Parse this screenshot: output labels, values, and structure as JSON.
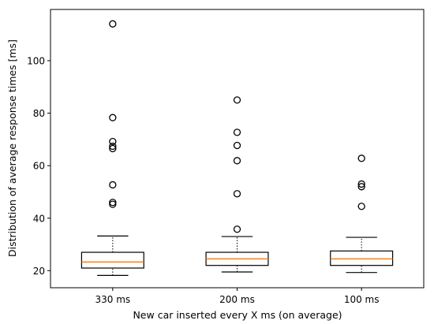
{
  "chart_data": {
    "type": "box",
    "title": "",
    "xlabel": "New car inserted every X ms (on average)",
    "ylabel": "Distribution of average response times [ms]",
    "ylim": [
      13.5,
      119.5
    ],
    "yticks": [
      20,
      40,
      60,
      80,
      100
    ],
    "grid": false,
    "categories": [
      "330 ms",
      "200 ms",
      "100 ms"
    ],
    "boxes": [
      {
        "category": "330 ms",
        "whisker_low": 18.2,
        "q1": 21.0,
        "median": 23.3,
        "q3": 27.0,
        "whisker_high": 33.2,
        "outliers": [
          45.3,
          46.0,
          52.7,
          66.5,
          67.4,
          69.2,
          78.3,
          114.0
        ]
      },
      {
        "category": "200 ms",
        "whisker_low": 19.5,
        "q1": 22.0,
        "median": 24.5,
        "q3": 27.0,
        "whisker_high": 33.0,
        "outliers": [
          35.8,
          49.3,
          61.9,
          67.7,
          72.7,
          85.0
        ]
      },
      {
        "category": "100 ms",
        "whisker_low": 19.3,
        "q1": 22.0,
        "median": 24.5,
        "q3": 27.5,
        "whisker_high": 32.7,
        "outliers": [
          44.5,
          52.0,
          53.0,
          62.8
        ]
      }
    ],
    "colors": {
      "box": "#000000",
      "median": "#ff7f0e",
      "outlier": "#000000"
    }
  }
}
